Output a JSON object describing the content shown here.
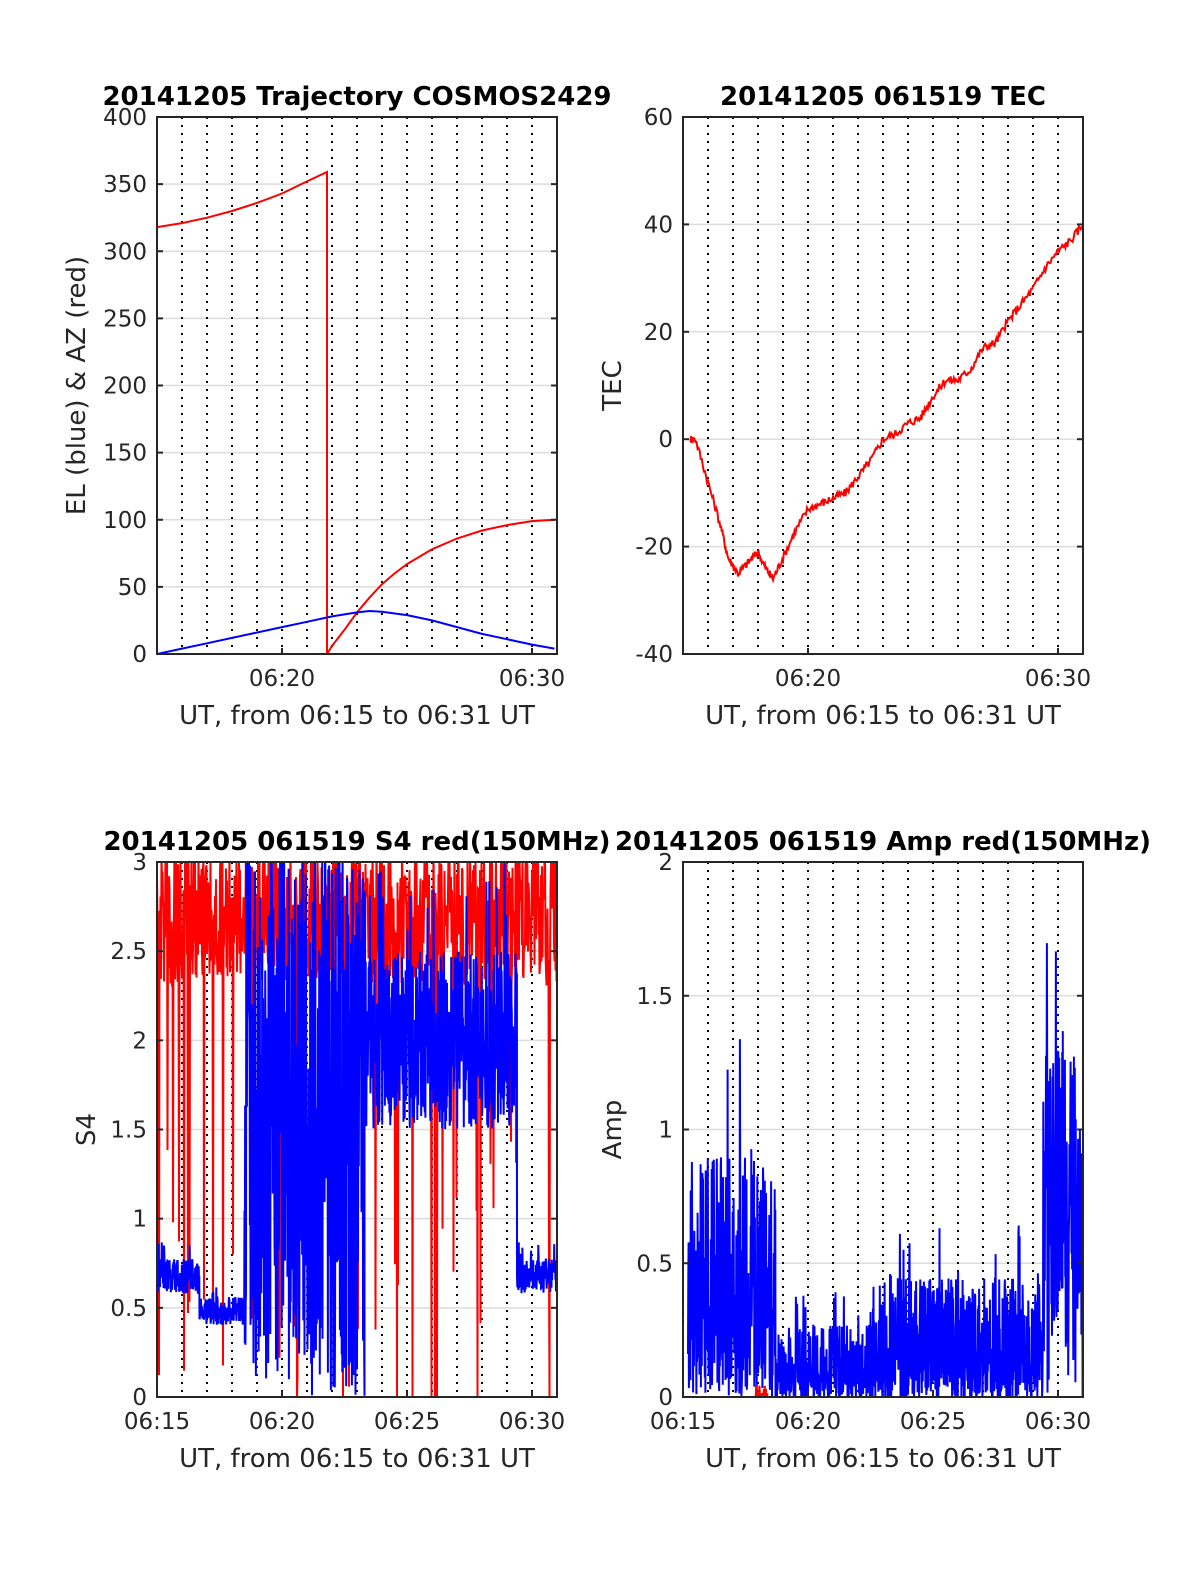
{
  "chart_data": [
    {
      "type": "line",
      "title": "20141205 Trajectory COSMOS2429",
      "xlabel": "UT, from 06:15 to 06:31 UT",
      "ylabel": "EL (blue) & AZ (red)",
      "xlim": [
        0,
        16
      ],
      "ylim": [
        0,
        400
      ],
      "yticks": [
        0,
        50,
        100,
        150,
        200,
        250,
        300,
        350,
        400
      ],
      "yticklabels": [
        "0",
        "50",
        "100",
        "150",
        "200",
        "250",
        "300",
        "350",
        "400"
      ],
      "xticks": [
        5,
        15
      ],
      "xticklabels": [
        "06:20",
        "06:30"
      ],
      "minor_vlines": [
        1,
        2,
        3,
        4,
        5,
        6,
        7,
        8,
        9,
        10,
        11,
        12,
        13,
        14,
        15
      ],
      "grid": true,
      "series": [
        {
          "color": "#ff0000",
          "x": [
            0,
            1,
            2,
            3,
            4,
            5,
            6,
            6.8,
            6.8,
            7,
            7.5,
            8,
            8.5,
            9,
            9.5,
            10,
            11,
            12,
            13,
            14,
            15,
            15.9
          ],
          "values": [
            318,
            321,
            325,
            330,
            336,
            343,
            352,
            359,
            0,
            6,
            18,
            31,
            42,
            52,
            60,
            67,
            78,
            86,
            92,
            96,
            99,
            100
          ]
        },
        {
          "color": "#0000ff",
          "x": [
            0,
            1,
            2,
            3,
            4,
            5,
            6,
            7,
            8,
            8.5,
            9,
            10,
            11,
            12,
            13,
            14,
            15,
            15.9
          ],
          "values": [
            0,
            4,
            8,
            12,
            16,
            20,
            24,
            28,
            31,
            32,
            31.5,
            29,
            25,
            20,
            15,
            11,
            7,
            4
          ]
        }
      ]
    },
    {
      "type": "line",
      "title": "20141205 061519 TEC",
      "xlabel": "UT, from 06:15 to 06:31 UT",
      "ylabel": "TEC",
      "xlim": [
        0,
        16
      ],
      "ylim": [
        -40,
        60
      ],
      "yticks": [
        -40,
        -20,
        0,
        20,
        40,
        60
      ],
      "yticklabels": [
        "-40",
        "-20",
        "0",
        "20",
        "40",
        "60"
      ],
      "xticks": [
        5,
        15
      ],
      "xticklabels": [
        "06:20",
        "06:30"
      ],
      "minor_vlines": [
        1,
        2,
        3,
        4,
        5,
        6,
        7,
        8,
        9,
        10,
        11,
        12,
        13,
        14,
        15
      ],
      "grid": true,
      "series": [
        {
          "color": "#ff0000",
          "x": [
            0.3,
            0.5,
            1,
            1.5,
            1.8,
            2.2,
            2.6,
            3,
            3.3,
            3.6,
            4,
            4.5,
            5,
            5.5,
            6,
            6.5,
            7,
            7.5,
            8,
            8.5,
            9,
            9.5,
            10,
            10.5,
            11,
            11.5,
            12,
            12.5,
            13,
            13.5,
            14,
            14.5,
            15,
            15.5,
            16
          ],
          "values": [
            0,
            0,
            -8,
            -16,
            -22,
            -25,
            -23,
            -21,
            -24,
            -26,
            -22,
            -17,
            -13,
            -12,
            -11,
            -10,
            -7,
            -4,
            0,
            1,
            3,
            4,
            8,
            11,
            11,
            13,
            17,
            18,
            22,
            25,
            28,
            32,
            35,
            37,
            40
          ]
        }
      ]
    },
    {
      "type": "line",
      "title": "20141205 061519 S4 red(150MHz)",
      "xlabel": "UT, from 06:15 to 06:31 UT",
      "ylabel": "S4",
      "xlim": [
        0,
        16
      ],
      "ylim": [
        0,
        3
      ],
      "yticks": [
        0,
        0.5,
        1,
        1.5,
        2,
        2.5,
        3
      ],
      "yticklabels": [
        "0",
        "0.5",
        "1",
        "1.5",
        "2",
        "2.5",
        "3"
      ],
      "xticks": [
        0,
        5,
        10,
        15
      ],
      "xticklabels": [
        "06:15",
        "06:20",
        "06:25",
        "06:30"
      ],
      "minor_vlines": [
        1,
        2,
        3,
        4,
        5,
        6,
        7,
        8,
        9,
        10,
        11,
        12,
        13,
        14,
        15
      ],
      "grid": true,
      "series": [
        {
          "color": "#ff0000",
          "noise": "high",
          "x_range": [
            0,
            16
          ],
          "base": 2.7,
          "amp": 0.4
        },
        {
          "color": "#0000ff",
          "noise": "segments",
          "segments": [
            {
              "x0": 0,
              "x1": 1.7,
              "base": 0.68,
              "amp": 0.1
            },
            {
              "x0": 1.7,
              "x1": 3.5,
              "base": 0.48,
              "amp": 0.08
            },
            {
              "x0": 3.5,
              "x1": 8.3,
              "base": 1.5,
              "amp": 1.5
            },
            {
              "x0": 8.3,
              "x1": 14.4,
              "base": 2.0,
              "amp": 0.5
            },
            {
              "x0": 14.4,
              "x1": 16,
              "base": 0.68,
              "amp": 0.1
            }
          ]
        }
      ]
    },
    {
      "type": "line",
      "title": "20141205 061519 Amp red(150MHz)",
      "xlabel": "UT, from 06:15 to 06:31 UT",
      "ylabel": "Amp",
      "xlim": [
        0,
        16
      ],
      "ylim": [
        0,
        2
      ],
      "yticks": [
        0,
        0.5,
        1,
        1.5,
        2
      ],
      "yticklabels": [
        "0",
        "0.5",
        "1",
        "1.5",
        "2"
      ],
      "xticks": [
        0,
        5,
        10,
        15
      ],
      "xticklabels": [
        "06:15",
        "06:20",
        "06:25",
        "06:30"
      ],
      "minor_vlines": [
        1,
        2,
        3,
        4,
        5,
        6,
        7,
        8,
        9,
        10,
        11,
        12,
        13,
        14,
        15
      ],
      "grid": true,
      "series": [
        {
          "color": "#0000ff",
          "noise": "segments",
          "segments": [
            {
              "x0": 0.2,
              "x1": 3.7,
              "base": 0.45,
              "amp": 0.45
            },
            {
              "x0": 3.7,
              "x1": 7.5,
              "base": 0.12,
              "amp": 0.15
            },
            {
              "x0": 7.5,
              "x1": 14.4,
              "base": 0.2,
              "amp": 0.25
            },
            {
              "x0": 14.4,
              "x1": 16,
              "base": 0.8,
              "amp": 0.5
            }
          ]
        },
        {
          "color": "#ff0000",
          "noise": "segments",
          "segments": [
            {
              "x0": 2.9,
              "x1": 3.4,
              "base": 0.01,
              "amp": 0.02
            }
          ]
        }
      ]
    }
  ]
}
